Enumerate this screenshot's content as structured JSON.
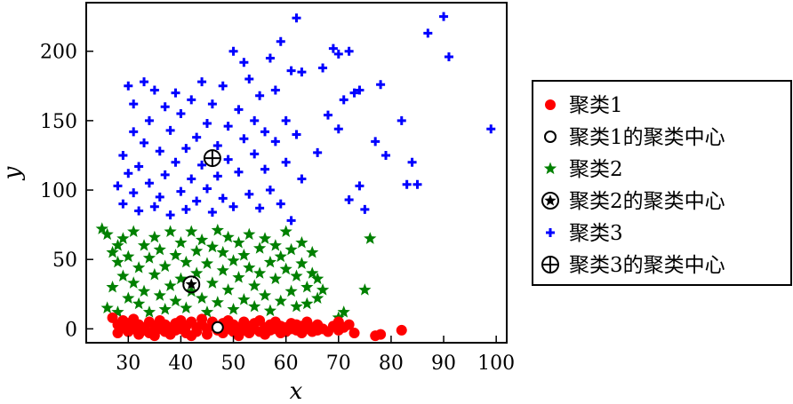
{
  "chart_data": {
    "type": "scatter",
    "xlabel": "x",
    "ylabel": "y",
    "xlim": [
      22,
      102
    ],
    "ylim": [
      -10,
      235
    ],
    "xticks": [
      30,
      40,
      50,
      60,
      70,
      80,
      90,
      100
    ],
    "yticks": [
      0,
      50,
      100,
      150,
      200
    ],
    "grid": false,
    "legend_position": "outside-right",
    "legend": [
      {
        "label": "聚类1",
        "marker": "filled-circle",
        "color": "#ff0000"
      },
      {
        "label": "聚类1的聚类中心",
        "marker": "open-circle",
        "color": "#000000"
      },
      {
        "label": "聚类2",
        "marker": "star",
        "color": "#008000"
      },
      {
        "label": "聚类2的聚类中心",
        "marker": "circled-star",
        "color": "#000000"
      },
      {
        "label": "聚类3",
        "marker": "plus",
        "color": "#0000ff"
      },
      {
        "label": "聚类3的聚类中心",
        "marker": "circled-plus",
        "color": "#000000"
      }
    ],
    "series": [
      {
        "name": "聚类1",
        "color": "#ff0000",
        "marker": "filled-circle",
        "points": [
          [
            27,
            8
          ],
          [
            28,
            3
          ],
          [
            28,
            -3
          ],
          [
            29,
            1
          ],
          [
            29,
            6
          ],
          [
            30,
            -2
          ],
          [
            30,
            4
          ],
          [
            31,
            0
          ],
          [
            31,
            7
          ],
          [
            32,
            -4
          ],
          [
            32,
            3
          ],
          [
            33,
            1
          ],
          [
            33,
            -1
          ],
          [
            34,
            5
          ],
          [
            34,
            -3
          ],
          [
            35,
            2
          ],
          [
            35,
            -5
          ],
          [
            36,
            0
          ],
          [
            36,
            6
          ],
          [
            37,
            -2
          ],
          [
            37,
            3
          ],
          [
            38,
            1
          ],
          [
            38,
            -4
          ],
          [
            39,
            4
          ],
          [
            39,
            -1
          ],
          [
            40,
            0
          ],
          [
            40,
            6
          ],
          [
            41,
            -3
          ],
          [
            41,
            2
          ],
          [
            42,
            5
          ],
          [
            42,
            -5
          ],
          [
            43,
            1
          ],
          [
            43,
            -2
          ],
          [
            44,
            3
          ],
          [
            44,
            7
          ],
          [
            45,
            0
          ],
          [
            45,
            -4
          ],
          [
            46,
            2
          ],
          [
            46,
            5
          ],
          [
            47,
            -1
          ],
          [
            47,
            1
          ],
          [
            48,
            4
          ],
          [
            48,
            -3
          ],
          [
            49,
            0
          ],
          [
            49,
            6
          ],
          [
            50,
            -2
          ],
          [
            50,
            3
          ],
          [
            51,
            1
          ],
          [
            51,
            -5
          ],
          [
            52,
            5
          ],
          [
            52,
            -1
          ],
          [
            53,
            2
          ],
          [
            53,
            -3
          ],
          [
            54,
            0
          ],
          [
            54,
            4
          ],
          [
            55,
            -2
          ],
          [
            55,
            6
          ],
          [
            56,
            1
          ],
          [
            56,
            -4
          ],
          [
            57,
            3
          ],
          [
            57,
            -1
          ],
          [
            58,
            5
          ],
          [
            58,
            0
          ],
          [
            59,
            -3
          ],
          [
            59,
            2
          ],
          [
            60,
            1
          ],
          [
            60,
            -2
          ],
          [
            61,
            4
          ],
          [
            61,
            0
          ],
          [
            62,
            -1
          ],
          [
            62,
            3
          ],
          [
            63,
            2
          ],
          [
            63,
            -3
          ],
          [
            64,
            0
          ],
          [
            64,
            5
          ],
          [
            65,
            -2
          ],
          [
            65,
            1
          ],
          [
            66,
            -1
          ],
          [
            66,
            3
          ],
          [
            67,
            0
          ],
          [
            68,
            -2
          ],
          [
            69,
            2
          ],
          [
            70,
            -1
          ],
          [
            70,
            5
          ],
          [
            71,
            1
          ],
          [
            72,
            3
          ],
          [
            73,
            -3
          ],
          [
            77,
            -5
          ],
          [
            78,
            -4
          ],
          [
            82,
            -1
          ]
        ]
      },
      {
        "name": "聚类2",
        "color": "#008000",
        "marker": "star",
        "points": [
          [
            25,
            72
          ],
          [
            26,
            68
          ],
          [
            26,
            15
          ],
          [
            27,
            55
          ],
          [
            27,
            30
          ],
          [
            28,
            48
          ],
          [
            28,
            60
          ],
          [
            28,
            12
          ],
          [
            29,
            38
          ],
          [
            29,
            65
          ],
          [
            30,
            22
          ],
          [
            30,
            52
          ],
          [
            31,
            70
          ],
          [
            31,
            33
          ],
          [
            32,
            44
          ],
          [
            32,
            18
          ],
          [
            33,
            60
          ],
          [
            33,
            27
          ],
          [
            34,
            51
          ],
          [
            34,
            12
          ],
          [
            35,
            66
          ],
          [
            35,
            39
          ],
          [
            36,
            24
          ],
          [
            36,
            57
          ],
          [
            37,
            45
          ],
          [
            37,
            14
          ],
          [
            38,
            70
          ],
          [
            38,
            31
          ],
          [
            39,
            53
          ],
          [
            39,
            20
          ],
          [
            40,
            62
          ],
          [
            40,
            36
          ],
          [
            41,
            48
          ],
          [
            41,
            15
          ],
          [
            42,
            70
          ],
          [
            42,
            27
          ],
          [
            43,
            56
          ],
          [
            43,
            40
          ],
          [
            44,
            22
          ],
          [
            44,
            64
          ],
          [
            45,
            47
          ],
          [
            45,
            12
          ],
          [
            46,
            59
          ],
          [
            46,
            33
          ],
          [
            47,
            71
          ],
          [
            47,
            19
          ],
          [
            48,
            42
          ],
          [
            48,
            55
          ],
          [
            49,
            28
          ],
          [
            49,
            66
          ],
          [
            50,
            14
          ],
          [
            50,
            49
          ],
          [
            51,
            37
          ],
          [
            51,
            62
          ],
          [
            52,
            21
          ],
          [
            52,
            53
          ],
          [
            53,
            44
          ],
          [
            53,
            68
          ],
          [
            54,
            16
          ],
          [
            54,
            31
          ],
          [
            55,
            58
          ],
          [
            55,
            40
          ],
          [
            56,
            24
          ],
          [
            56,
            65
          ],
          [
            57,
            48
          ],
          [
            57,
            13
          ],
          [
            58,
            36
          ],
          [
            58,
            60
          ],
          [
            59,
            20
          ],
          [
            59,
            52
          ],
          [
            60,
            43
          ],
          [
            60,
            70
          ],
          [
            61,
            27
          ],
          [
            61,
            57
          ],
          [
            62,
            38
          ],
          [
            62,
            16
          ],
          [
            63,
            62
          ],
          [
            63,
            47
          ],
          [
            64,
            30
          ],
          [
            64,
            18
          ],
          [
            65,
            40
          ],
          [
            65,
            55
          ],
          [
            66,
            22
          ],
          [
            66,
            36
          ],
          [
            67,
            28
          ],
          [
            70,
            8
          ],
          [
            71,
            12
          ],
          [
            75,
            28
          ],
          [
            76,
            65
          ]
        ]
      },
      {
        "name": "聚类3",
        "color": "#0000ff",
        "marker": "plus",
        "points": [
          [
            28,
            103
          ],
          [
            29,
            90
          ],
          [
            29,
            125
          ],
          [
            30,
            112
          ],
          [
            30,
            175
          ],
          [
            31,
            98
          ],
          [
            31,
            142
          ],
          [
            31,
            162
          ],
          [
            32,
            117
          ],
          [
            32,
            85
          ],
          [
            33,
            134
          ],
          [
            33,
            178
          ],
          [
            34,
            105
          ],
          [
            34,
            150
          ],
          [
            35,
            88
          ],
          [
            35,
            172
          ],
          [
            36,
            128
          ],
          [
            36,
            95
          ],
          [
            37,
            160
          ],
          [
            37,
            111
          ],
          [
            38,
            143
          ],
          [
            38,
            82
          ],
          [
            39,
            170
          ],
          [
            39,
            120
          ],
          [
            40,
            99
          ],
          [
            40,
            155
          ],
          [
            41,
            130
          ],
          [
            41,
            86
          ],
          [
            42,
            165
          ],
          [
            42,
            108
          ],
          [
            43,
            138
          ],
          [
            43,
            92
          ],
          [
            44,
            178
          ],
          [
            44,
            118
          ],
          [
            45,
            148
          ],
          [
            45,
            101
          ],
          [
            46,
            84
          ],
          [
            46,
            162
          ],
          [
            47,
            132
          ],
          [
            47,
            110
          ],
          [
            48,
            175
          ],
          [
            48,
            94
          ],
          [
            49,
            146
          ],
          [
            49,
            122
          ],
          [
            50,
            200
          ],
          [
            50,
            88
          ],
          [
            51,
            158
          ],
          [
            51,
            113
          ],
          [
            52,
            192
          ],
          [
            52,
            137
          ],
          [
            53,
            97
          ],
          [
            53,
            180
          ],
          [
            54,
            126
          ],
          [
            54,
            150
          ],
          [
            55,
            87
          ],
          [
            55,
            168
          ],
          [
            56,
            115
          ],
          [
            56,
            142
          ],
          [
            57,
            195
          ],
          [
            57,
            100
          ],
          [
            58,
            135
          ],
          [
            58,
            172
          ],
          [
            59,
            207
          ],
          [
            59,
            90
          ],
          [
            60,
            150
          ],
          [
            60,
            120
          ],
          [
            61,
            78
          ],
          [
            61,
            186
          ],
          [
            62,
            224
          ],
          [
            62,
            140
          ],
          [
            63,
            108
          ],
          [
            63,
            185
          ],
          [
            66,
            127
          ],
          [
            67,
            188
          ],
          [
            68,
            154
          ],
          [
            69,
            202
          ],
          [
            70,
            198
          ],
          [
            70,
            144
          ],
          [
            71,
            165
          ],
          [
            72,
            93
          ],
          [
            72,
            200
          ],
          [
            73,
            170
          ],
          [
            74,
            103
          ],
          [
            74,
            172
          ],
          [
            75,
            86
          ],
          [
            77,
            135
          ],
          [
            78,
            176
          ],
          [
            79,
            125
          ],
          [
            82,
            150
          ],
          [
            83,
            104
          ],
          [
            84,
            120
          ],
          [
            85,
            104
          ],
          [
            87,
            213
          ],
          [
            90,
            225
          ],
          [
            91,
            196
          ],
          [
            99,
            144
          ]
        ]
      }
    ],
    "centers": [
      {
        "name": "聚类1的聚类中心",
        "marker": "open-circle",
        "point": [
          47,
          1
        ]
      },
      {
        "name": "聚类2的聚类中心",
        "marker": "circled-star",
        "point": [
          42,
          32
        ]
      },
      {
        "name": "聚类3的聚类中心",
        "marker": "circled-plus",
        "point": [
          46,
          123
        ]
      }
    ]
  }
}
